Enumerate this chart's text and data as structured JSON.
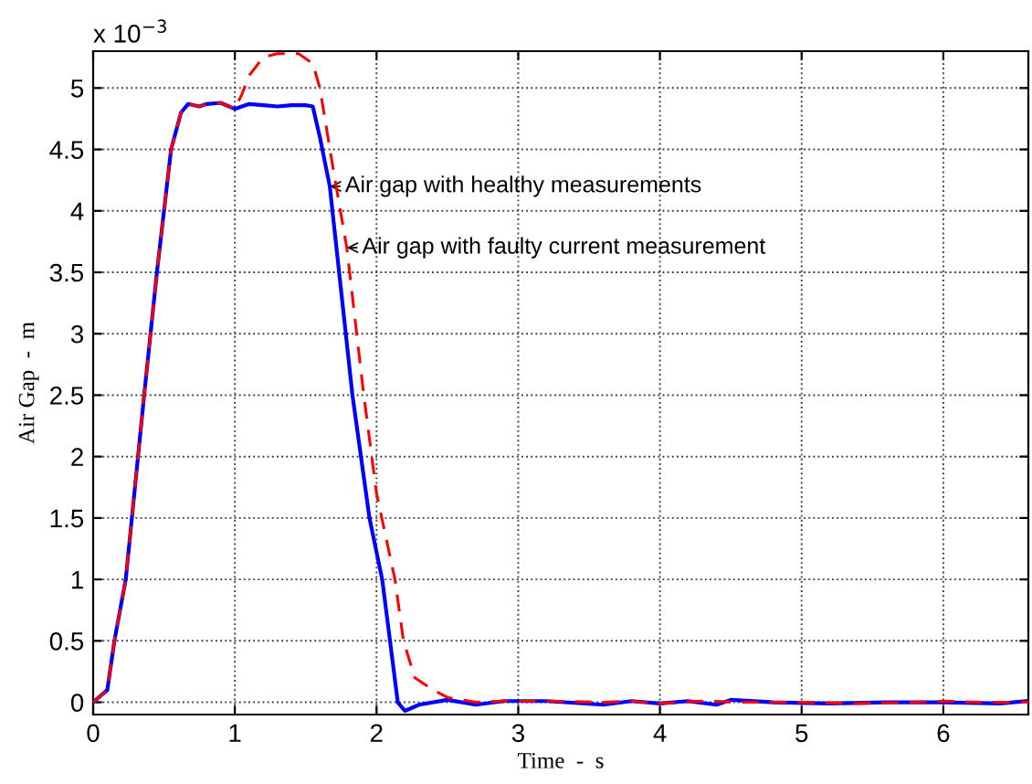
{
  "chart_data": {
    "type": "line",
    "xlabel": "Time  -  s",
    "ylabel": "Air Gap  -  m",
    "xlim": [
      0,
      6.6
    ],
    "xticks": [
      0,
      1,
      2,
      3,
      4,
      5,
      6
    ],
    "ylim": [
      -0.1,
      5.3
    ],
    "yticks": [
      0,
      0.5,
      1,
      1.5,
      2,
      2.5,
      3,
      3.5,
      4,
      4.5,
      5
    ],
    "grid": true,
    "series": [
      {
        "color": "#ff0000",
        "line_style": "dashed",
        "x": [
          0,
          0.1,
          0.15,
          0.23,
          0.36,
          0.45,
          0.55,
          0.62,
          0.67,
          0.75,
          0.8,
          0.9,
          1.0,
          1.05,
          1.1,
          1.2,
          1.3,
          1.45,
          1.55,
          1.6,
          1.7,
          1.79,
          1.91,
          2.0,
          2.13,
          2.19,
          2.27,
          2.4,
          2.5,
          2.6,
          2.7,
          2.9,
          3.2,
          3.6,
          3.8,
          4.0,
          4.3,
          4.6,
          5.0,
          5.4,
          5.8,
          6.0,
          6.3,
          6.6
        ],
        "values": [
          0,
          0.1,
          0.5,
          1.0,
          2.5,
          3.5,
          4.5,
          4.8,
          4.87,
          4.85,
          4.87,
          4.88,
          4.83,
          4.95,
          5.1,
          5.25,
          5.28,
          5.28,
          5.2,
          5.0,
          4.3,
          3.7,
          2.5,
          1.7,
          1.0,
          0.5,
          0.2,
          0.1,
          0.04,
          0.02,
          0.0,
          0.01,
          0.01,
          0.0,
          0.01,
          -0.01,
          0.01,
          0.0,
          0.0,
          -0.01,
          0.0,
          0.01,
          0.0,
          0.0
        ]
      },
      {
        "color": "#0000ff",
        "line_style": "solid",
        "x": [
          0,
          0.1,
          0.15,
          0.23,
          0.36,
          0.45,
          0.55,
          0.62,
          0.67,
          0.75,
          0.8,
          0.9,
          1.0,
          1.1,
          1.2,
          1.3,
          1.4,
          1.5,
          1.55,
          1.6,
          1.67,
          1.83,
          1.95,
          2.04,
          2.15,
          2.2,
          2.3,
          2.5,
          2.7,
          2.9,
          3.2,
          3.6,
          3.8,
          4.0,
          4.2,
          4.4,
          4.5,
          4.8,
          5.2,
          5.6,
          6.0,
          6.4,
          6.6
        ],
        "values": [
          0,
          0.1,
          0.5,
          1.0,
          2.5,
          3.5,
          4.5,
          4.8,
          4.87,
          4.85,
          4.87,
          4.88,
          4.83,
          4.87,
          4.86,
          4.85,
          4.86,
          4.86,
          4.85,
          4.6,
          4.2,
          2.5,
          1.5,
          1.0,
          0.0,
          -0.07,
          -0.02,
          0.02,
          -0.02,
          0.01,
          0.01,
          -0.02,
          0.01,
          -0.01,
          0.01,
          -0.02,
          0.02,
          0.0,
          -0.01,
          0.0,
          0.0,
          -0.01,
          0.01
        ]
      }
    ],
    "annotations": [
      {
        "text": "Air gap with healthy measurements",
        "x": 1.67,
        "y": 4.2
      },
      {
        "text": "Air gap with faulty current measurement",
        "x": 1.79,
        "y": 3.7
      },
      "x 10$^{−3}$"
    ]
  }
}
